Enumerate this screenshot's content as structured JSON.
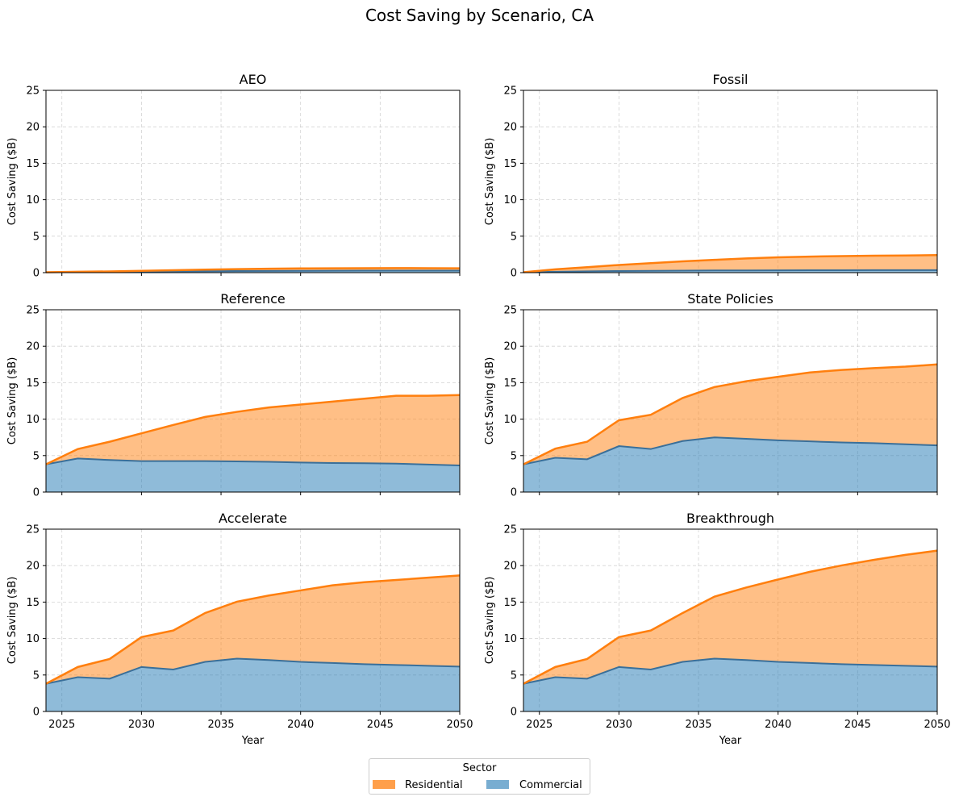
{
  "chart_data": {
    "title": "Cost Saving by Scenario, CA",
    "type": "area",
    "stacked": true,
    "xlabel": "Year",
    "ylabel": "Cost Saving ($B)",
    "xlim": [
      2024,
      2050
    ],
    "ylim": [
      0,
      25
    ],
    "xticks": [
      2025,
      2030,
      2035,
      2040,
      2045,
      2050
    ],
    "yticks": [
      0,
      5,
      10,
      15,
      20,
      25
    ],
    "grid": true,
    "x": [
      2024,
      2026,
      2028,
      2030,
      2032,
      2034,
      2036,
      2038,
      2040,
      2042,
      2044,
      2046,
      2048,
      2050
    ],
    "colors": {
      "Residential": "#ff7f0e",
      "Commercial": "#1f77b4"
    },
    "legend": {
      "title": "Sector",
      "placement": "bottom-center",
      "entries": [
        "Residential",
        "Commercial"
      ]
    },
    "panels": [
      {
        "title": "AEO",
        "series": [
          {
            "name": "Commercial",
            "values": [
              0.05,
              0.08,
              0.12,
              0.15,
              0.18,
              0.2,
              0.22,
              0.24,
              0.25,
              0.26,
              0.27,
              0.27,
              0.27,
              0.27
            ]
          },
          {
            "name": "Residential",
            "values": [
              0.0,
              0.04,
              0.05,
              0.1,
              0.15,
              0.22,
              0.26,
              0.3,
              0.33,
              0.34,
              0.34,
              0.35,
              0.34,
              0.33
            ]
          }
        ]
      },
      {
        "title": "Fossil",
        "series": [
          {
            "name": "Commercial",
            "values": [
              0.05,
              0.12,
              0.18,
              0.22,
              0.25,
              0.28,
              0.3,
              0.31,
              0.32,
              0.33,
              0.33,
              0.34,
              0.34,
              0.34
            ]
          },
          {
            "name": "Residential",
            "values": [
              0.0,
              0.33,
              0.57,
              0.83,
              1.05,
              1.27,
              1.45,
              1.64,
              1.78,
              1.87,
              1.94,
              1.98,
              2.01,
              2.06
            ]
          }
        ]
      },
      {
        "title": "Reference",
        "series": [
          {
            "name": "Commercial",
            "values": [
              3.8,
              4.6,
              4.4,
              4.25,
              4.25,
              4.25,
              4.2,
              4.15,
              4.05,
              3.98,
              3.95,
              3.9,
              3.78,
              3.65
            ]
          },
          {
            "name": "Residential",
            "values": [
              0.0,
              1.3,
              2.5,
              3.8,
              4.95,
              6.05,
              6.8,
              7.45,
              7.95,
              8.42,
              8.85,
              9.3,
              9.42,
              9.65
            ]
          }
        ]
      },
      {
        "title": "State Policies",
        "series": [
          {
            "name": "Commercial",
            "values": [
              3.8,
              4.7,
              4.5,
              6.3,
              5.9,
              7.0,
              7.5,
              7.3,
              7.1,
              6.95,
              6.8,
              6.7,
              6.55,
              6.4
            ]
          },
          {
            "name": "Residential",
            "values": [
              0.0,
              1.25,
              2.4,
              3.55,
              4.7,
              5.9,
              6.9,
              7.9,
              8.7,
              9.45,
              9.95,
              10.3,
              10.65,
              11.1
            ]
          }
        ]
      },
      {
        "title": "Accelerate",
        "series": [
          {
            "name": "Commercial",
            "values": [
              3.8,
              4.7,
              4.5,
              6.1,
              5.75,
              6.8,
              7.25,
              7.05,
              6.8,
              6.65,
              6.48,
              6.38,
              6.27,
              6.15
            ]
          },
          {
            "name": "Residential",
            "values": [
              0.0,
              1.4,
              2.7,
              4.1,
              5.35,
              6.7,
              7.8,
              8.85,
              9.8,
              10.65,
              11.25,
              11.65,
              12.08,
              12.5
            ]
          }
        ]
      },
      {
        "title": "Breakthrough",
        "series": [
          {
            "name": "Commercial",
            "values": [
              3.8,
              4.7,
              4.5,
              6.1,
              5.75,
              6.8,
              7.25,
              7.05,
              6.8,
              6.65,
              6.48,
              6.38,
              6.27,
              6.15
            ]
          },
          {
            "name": "Residential",
            "values": [
              0.0,
              1.4,
              2.7,
              4.1,
              5.35,
              6.7,
              8.5,
              9.95,
              11.3,
              12.5,
              13.55,
              14.4,
              15.2,
              15.9
            ]
          }
        ]
      }
    ]
  }
}
